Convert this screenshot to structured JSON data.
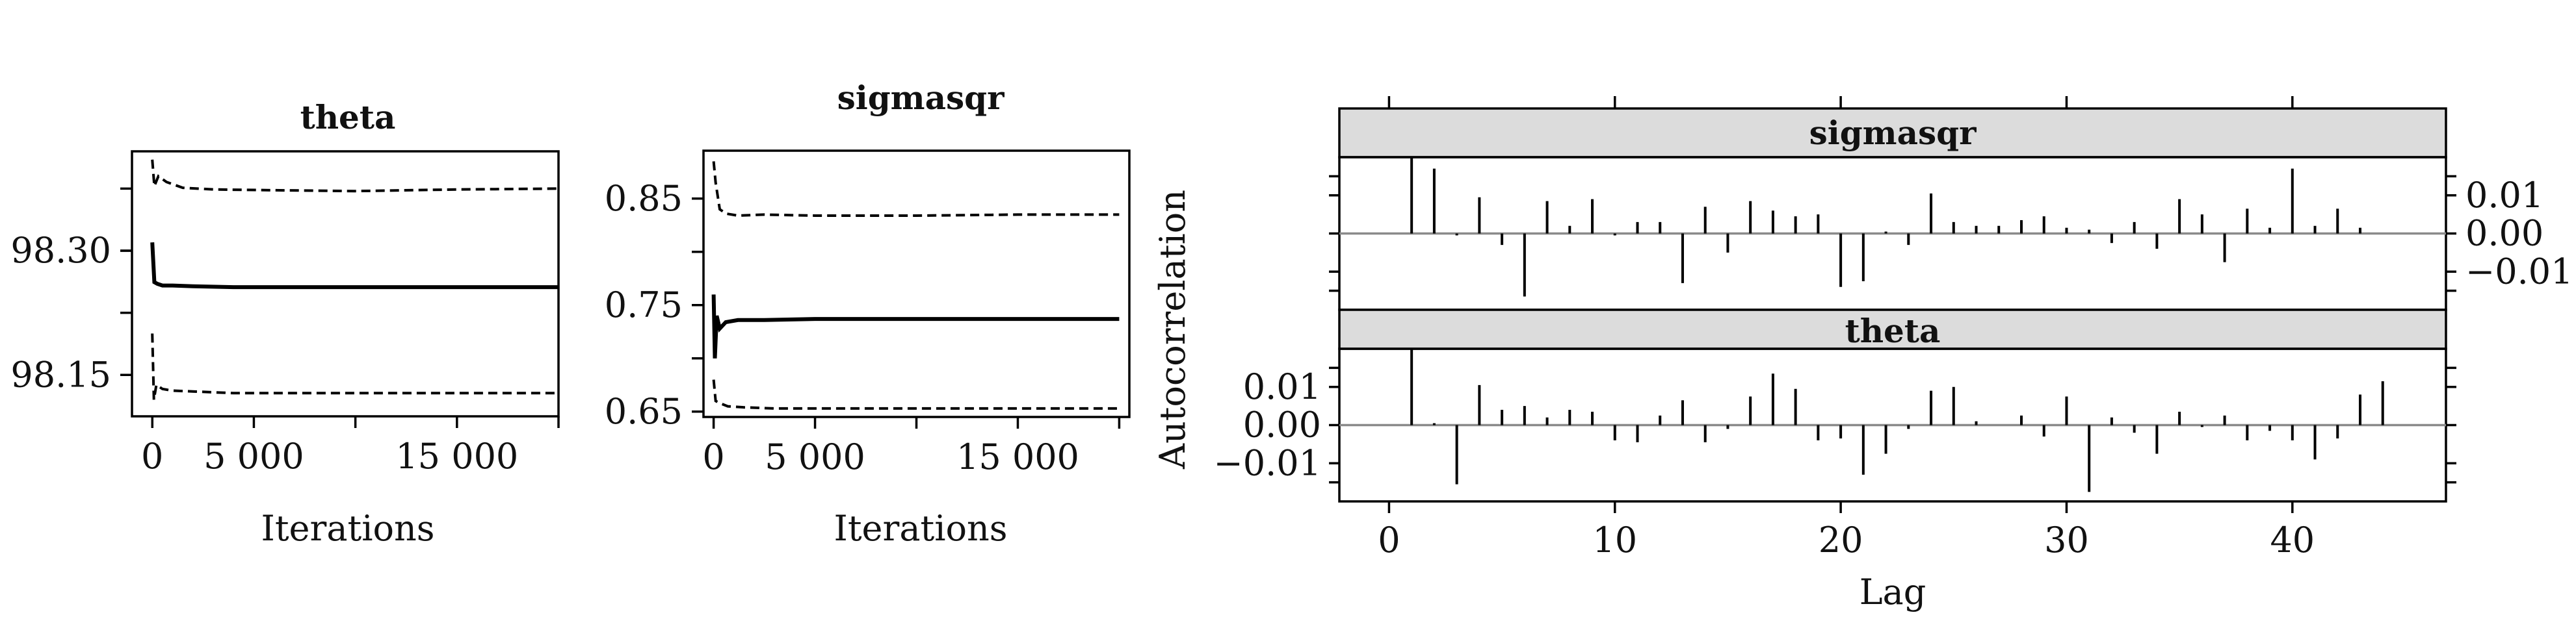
{
  "chart_data": [
    {
      "type": "line",
      "title": "theta",
      "xlabel": "Iterations",
      "ylabel": "",
      "x_ticks": [
        0,
        5000,
        15000
      ],
      "x_tick_labels": [
        "0",
        "5 000",
        "15 000"
      ],
      "y_ticks": [
        98.15,
        98.3
      ],
      "y_tick_labels": [
        "98.15",
        "98.30"
      ],
      "xlim": [
        -1000,
        20000
      ],
      "ylim": [
        98.1,
        98.42
      ],
      "series": [
        {
          "style": "solid",
          "x": [
            0,
            100,
            250,
            500,
            1000,
            2000,
            4000,
            8000,
            12000,
            16000,
            20000
          ],
          "y": [
            98.31,
            98.262,
            98.26,
            98.258,
            98.258,
            98.257,
            98.256,
            98.256,
            98.256,
            98.256,
            98.256
          ]
        },
        {
          "style": "dashed",
          "x": [
            0,
            100,
            300,
            700,
            1500,
            3000,
            6000,
            10000,
            15000,
            20000
          ],
          "y": [
            98.41,
            98.378,
            98.39,
            98.383,
            98.376,
            98.374,
            98.373,
            98.372,
            98.374,
            98.375
          ]
        },
        {
          "style": "dashed",
          "x": [
            0,
            80,
            200,
            500,
            1000,
            2000,
            4000,
            8000,
            12000,
            16000,
            20000
          ],
          "y": [
            98.2,
            98.12,
            98.138,
            98.133,
            98.131,
            98.13,
            98.128,
            98.128,
            98.128,
            98.128,
            98.128
          ]
        }
      ]
    },
    {
      "type": "line",
      "title": "sigmasqr",
      "xlabel": "Iterations",
      "ylabel": "",
      "x_ticks": [
        0,
        5000,
        15000
      ],
      "x_tick_labels": [
        "0",
        "5 000",
        "15 000"
      ],
      "y_ticks": [
        0.65,
        0.75,
        0.85
      ],
      "y_tick_labels": [
        "0.65",
        "0.75",
        "0.85"
      ],
      "xlim": [
        -500,
        20500
      ],
      "ylim": [
        0.645,
        0.895
      ],
      "series": [
        {
          "style": "solid",
          "x": [
            0,
            60,
            150,
            300,
            600,
            1200,
            2500,
            5000,
            10000,
            15000,
            20000
          ],
          "y": [
            0.76,
            0.7,
            0.74,
            0.728,
            0.734,
            0.736,
            0.736,
            0.737,
            0.737,
            0.737,
            0.737
          ]
        },
        {
          "style": "dashed",
          "x": [
            0,
            100,
            300,
            600,
            1200,
            2500,
            5000,
            10000,
            15000,
            20000
          ],
          "y": [
            0.885,
            0.865,
            0.84,
            0.836,
            0.834,
            0.835,
            0.834,
            0.834,
            0.835,
            0.835
          ]
        },
        {
          "style": "dashed",
          "x": [
            0,
            100,
            300,
            700,
            1500,
            3000,
            6000,
            10000,
            15000,
            20000
          ],
          "y": [
            0.68,
            0.66,
            0.658,
            0.655,
            0.654,
            0.653,
            0.653,
            0.653,
            0.653,
            0.653
          ]
        }
      ]
    },
    {
      "type": "bar",
      "xlabel": "Lag",
      "ylabel": "Autocorrelation",
      "x_ticks": [
        0,
        10,
        20,
        30,
        40
      ],
      "x_tick_labels": [
        "0",
        "10",
        "20",
        "30",
        "40"
      ],
      "xlim": [
        -2.2,
        46.8
      ],
      "panels": [
        {
          "strip": "sigmasqr",
          "y_ticks": [
            -0.01,
            0.0,
            0.01
          ],
          "y_tick_labels": [
            "−0.01",
            "0.00",
            "0.01"
          ],
          "ylim": [
            -0.02,
            0.02
          ],
          "lags": [
            1,
            2,
            3,
            4,
            5,
            6,
            7,
            8,
            9,
            10,
            11,
            12,
            13,
            14,
            15,
            16,
            17,
            18,
            19,
            20,
            21,
            22,
            23,
            24,
            25,
            26,
            27,
            28,
            29,
            30,
            31,
            32,
            33,
            34,
            35,
            36,
            37,
            38,
            39,
            40,
            41,
            42,
            43,
            44
          ],
          "values": [
            0.02,
            0.017,
            -0.0005,
            0.0095,
            -0.003,
            -0.0165,
            0.0085,
            0.002,
            0.009,
            -0.0005,
            0.003,
            0.003,
            -0.013,
            0.007,
            -0.005,
            0.0085,
            0.006,
            0.0045,
            0.005,
            -0.014,
            -0.0125,
            0.0005,
            -0.003,
            0.0105,
            0.003,
            0.002,
            0.002,
            0.0035,
            0.0045,
            0.0015,
            0.001,
            -0.0025,
            0.003,
            -0.004,
            0.009,
            0.005,
            -0.0075,
            0.0065,
            0.0015,
            0.017,
            0.002,
            0.0065,
            0.0015,
            0.0
          ]
        },
        {
          "strip": "theta",
          "y_ticks": [
            -0.01,
            0.0,
            0.01
          ],
          "y_tick_labels": [
            "−0.01",
            "0.00",
            "0.01"
          ],
          "ylim": [
            -0.02,
            0.02
          ],
          "lags": [
            1,
            2,
            3,
            4,
            5,
            6,
            7,
            8,
            9,
            10,
            11,
            12,
            13,
            14,
            15,
            16,
            17,
            18,
            19,
            20,
            21,
            22,
            23,
            24,
            25,
            26,
            27,
            28,
            29,
            30,
            31,
            32,
            33,
            34,
            35,
            36,
            37,
            38,
            39,
            40,
            41,
            42,
            43,
            44
          ],
          "values": [
            0.02,
            0.0005,
            -0.0155,
            0.0105,
            0.004,
            0.005,
            0.002,
            0.004,
            0.0035,
            -0.004,
            -0.0045,
            0.0025,
            0.0065,
            -0.0045,
            -0.001,
            0.0075,
            0.0135,
            0.0095,
            -0.004,
            -0.0035,
            -0.013,
            -0.0075,
            -0.001,
            0.009,
            0.01,
            0.001,
            0.0,
            0.0025,
            -0.003,
            0.0075,
            -0.0175,
            0.002,
            -0.002,
            -0.0075,
            0.0035,
            -0.0005,
            0.0025,
            -0.004,
            -0.0015,
            -0.004,
            -0.009,
            -0.0035,
            0.008,
            0.0115
          ]
        }
      ]
    }
  ]
}
